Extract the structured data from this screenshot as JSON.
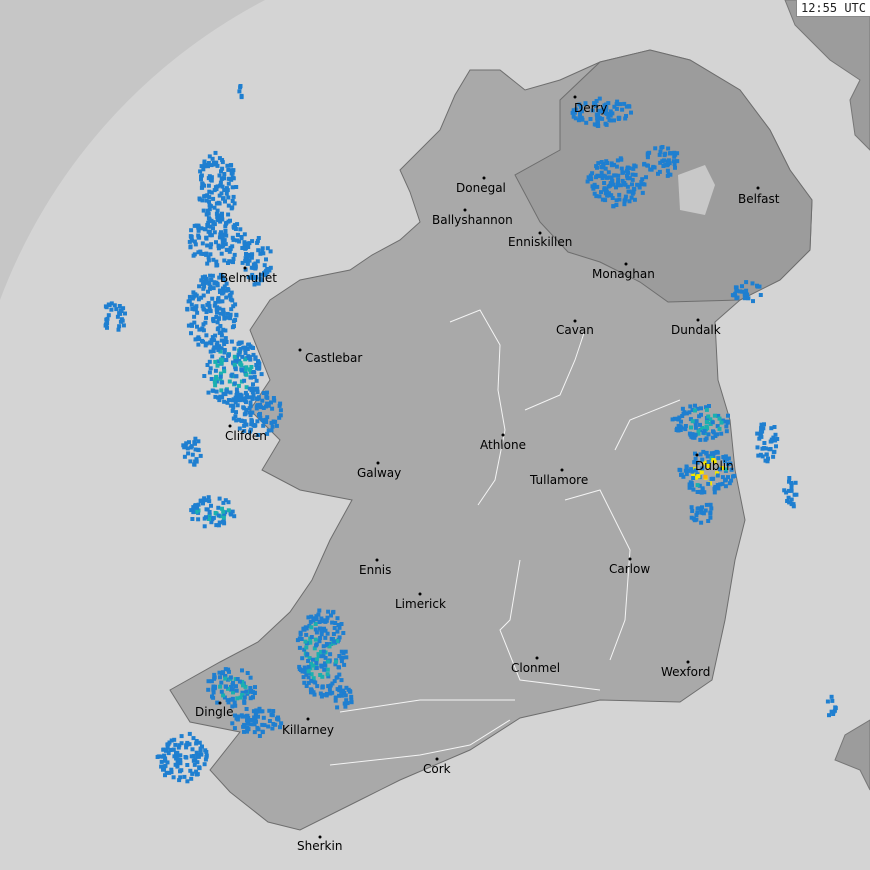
{
  "timestamp": "12:55 UTC",
  "colors": {
    "sea_outside_range": "#c6c6c6",
    "sea_in_range": "#d4d4d4",
    "land_roi": "#a9a9a9",
    "land_uk": "#9c9c9c",
    "rain_light": "#1f7fd0",
    "rain_moderate": "#1ab0b0",
    "rain_heavy": "#f5e600",
    "rain_intense": "#ffb000"
  },
  "cities": [
    {
      "name": "Derry"
    },
    {
      "name": "Donegal"
    },
    {
      "name": "Ballyshannon"
    },
    {
      "name": "Enniskillen"
    },
    {
      "name": "Belfast"
    },
    {
      "name": "Monaghan"
    },
    {
      "name": "Belmullet"
    },
    {
      "name": "Cavan"
    },
    {
      "name": "Dundalk"
    },
    {
      "name": "Castlebar"
    },
    {
      "name": "Athlone"
    },
    {
      "name": "Clifden"
    },
    {
      "name": "Dublin"
    },
    {
      "name": "Galway"
    },
    {
      "name": "Tullamore"
    },
    {
      "name": "Ennis"
    },
    {
      "name": "Carlow"
    },
    {
      "name": "Limerick"
    },
    {
      "name": "Clonmel"
    },
    {
      "name": "Wexford"
    },
    {
      "name": "Dingle"
    },
    {
      "name": "Killarney"
    },
    {
      "name": "Cork"
    },
    {
      "name": "Sherkin"
    }
  ]
}
